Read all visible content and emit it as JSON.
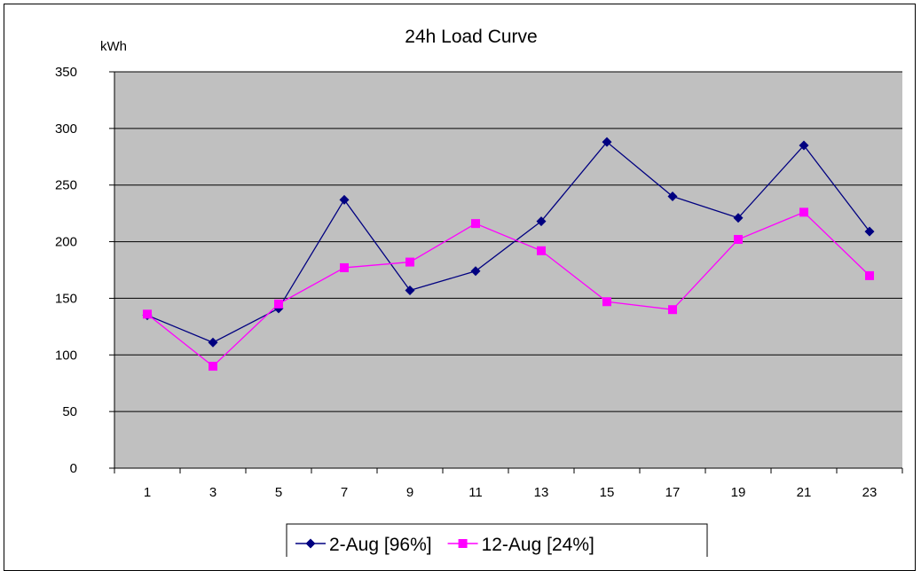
{
  "chart_data": {
    "type": "line",
    "title": "24h Load Curve",
    "ylabel": "kWh",
    "xlabel": "",
    "categories": [
      "1",
      "3",
      "5",
      "7",
      "9",
      "11",
      "13",
      "15",
      "17",
      "19",
      "21",
      "23"
    ],
    "ylim": [
      0,
      350
    ],
    "yticks": [
      0,
      50,
      100,
      150,
      200,
      250,
      300,
      350
    ],
    "grid": true,
    "legend": "bottom",
    "background_color": "#C0C0C0",
    "series": [
      {
        "name": "2-Aug [96%]",
        "color": "#000080",
        "marker": "diamond",
        "values": [
          135,
          111,
          141,
          237,
          157,
          174,
          218,
          288,
          240,
          221,
          285,
          209
        ]
      },
      {
        "name": "12-Aug [24%]",
        "color": "#FF00FF",
        "marker": "square",
        "values": [
          136,
          90,
          145,
          177,
          182,
          216,
          192,
          147,
          140,
          202,
          226,
          170
        ]
      }
    ]
  }
}
